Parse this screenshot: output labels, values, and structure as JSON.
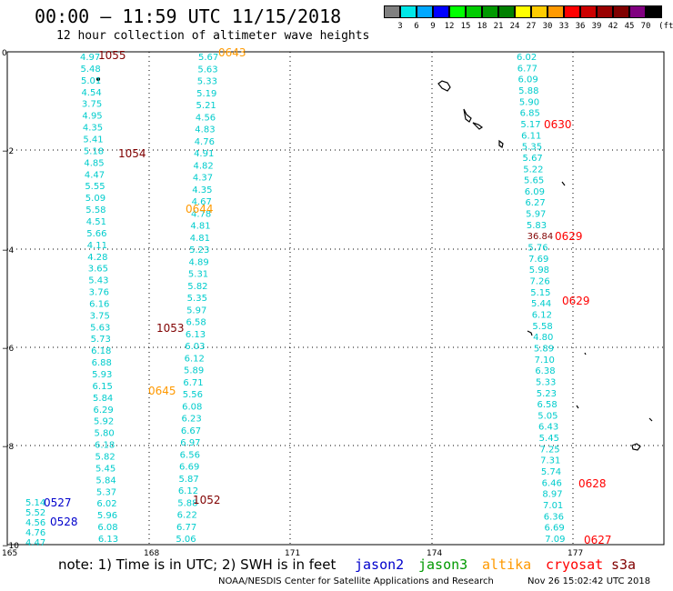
{
  "header": {
    "title": "00:00 — 11:59 UTC 11/15/2018",
    "subtitle": "12 hour collection of altimeter wave heights"
  },
  "colorbar": {
    "unit": "(ft)",
    "bins": [
      {
        "label": "",
        "color": "#808080"
      },
      {
        "label": "3",
        "color": "#00e8e8"
      },
      {
        "label": "6",
        "color": "#00a8ff"
      },
      {
        "label": "9",
        "color": "#0000ff"
      },
      {
        "label": "12",
        "color": "#00ff00"
      },
      {
        "label": "15",
        "color": "#00cc00"
      },
      {
        "label": "18",
        "color": "#009900"
      },
      {
        "label": "21",
        "color": "#008000"
      },
      {
        "label": "24",
        "color": "#ffff00"
      },
      {
        "label": "27",
        "color": "#ffcc00"
      },
      {
        "label": "30",
        "color": "#ff9900"
      },
      {
        "label": "33",
        "color": "#ff0000"
      },
      {
        "label": "36",
        "color": "#cc0000"
      },
      {
        "label": "39",
        "color": "#990000"
      },
      {
        "label": "42",
        "color": "#800000"
      },
      {
        "label": "45",
        "color": "#800080"
      },
      {
        "label": "70",
        "color": "#000000"
      }
    ]
  },
  "axes": {
    "lat_ticks": [
      "0",
      "−2",
      "−4",
      "−6",
      "−8",
      "−10"
    ],
    "lon_ticks": [
      "165",
      "168",
      "171",
      "174",
      "177"
    ]
  },
  "tracks": [
    {
      "x": 88,
      "dx": 0.22,
      "color": "#00cccc",
      "values": [
        "4.97",
        "5.48",
        "5.01",
        "4.54",
        "3.75",
        "4.95",
        "4.35",
        "5.41",
        "5.18",
        "4.85",
        "4.47",
        "5.55",
        "5.09",
        "5.58",
        "4.51",
        "5.66",
        "4.11",
        "4.28",
        "3.65",
        "5.43",
        "3.76",
        "6.16",
        "3.75",
        "5.63",
        "5.73",
        "6.18",
        "6.88",
        "5.93",
        "6.15",
        "5.84",
        "6.29",
        "5.92",
        "5.80",
        "6.18",
        "5.82",
        "5.45",
        "5.84",
        "5.37",
        "6.02",
        "5.96",
        "6.08",
        "6.13"
      ]
    },
    {
      "x": 218,
      "dx": -0.28,
      "color": "#00cccc",
      "values": [
        "5.67",
        "5.63",
        "5.33",
        "5.19",
        "5.21",
        "4.56",
        "4.83",
        "4.76",
        "4.91",
        "4.82",
        "4.37",
        "4.35",
        "4.67",
        "4.78",
        "4.81",
        "4.81",
        "5.23",
        "4.89",
        "5.31",
        "5.82",
        "5.35",
        "5.97",
        "6.58",
        "6.13",
        "6.03",
        "6.12",
        "5.89",
        "6.71",
        "5.56",
        "6.08",
        "6.23",
        "6.67",
        "6.97",
        "6.56",
        "6.69",
        "5.87",
        "6.12",
        "5.88",
        "6.22",
        "6.77",
        "5.06"
      ]
    },
    {
      "x": 568,
      "dx": 0.33,
      "color": "#00cccc",
      "values": [
        "6.02",
        "6.77",
        "6.09",
        "5.88",
        "5.90",
        "6.85",
        "5.17",
        "6.11",
        "5.35",
        "5.67",
        "5.22",
        "5.65",
        "6.09",
        "6.27",
        "5.97",
        "5.83",
        "36.84",
        "5.76",
        "7.69",
        "5.98",
        "7.26",
        "5.15",
        "5.44",
        "6.12",
        "5.58",
        "4.80",
        "5.89",
        "7.10",
        "6.38",
        "5.33",
        "5.23",
        "6.58",
        "5.05",
        "6.43",
        "5.45",
        "7.25",
        "7.31",
        "5.74",
        "6.46",
        "8.97",
        "7.01",
        "6.36",
        "6.69",
        "7.09"
      ]
    },
    {
      "x": 28,
      "dx": 0.0,
      "y0": 552,
      "color": "#00cccc",
      "values": [
        "5.14",
        "5.52",
        "4.56",
        "4.76",
        "4.47"
      ]
    }
  ],
  "pass_labels": [
    {
      "text": "1055",
      "color": "#800000"
    },
    {
      "text": "1054",
      "color": "#800000"
    },
    {
      "text": "1053",
      "color": "#800000"
    },
    {
      "text": "1052",
      "color": "#800000"
    },
    {
      "text": "0643",
      "color": "#ff9900"
    },
    {
      "text": "0644",
      "color": "#ff9900"
    },
    {
      "text": "0645",
      "color": "#ff9900"
    },
    {
      "text": "0630",
      "color": "#ff0000"
    },
    {
      "text": "0629",
      "color": "#ff0000"
    },
    {
      "text": "0629",
      "color": "#ff0000"
    },
    {
      "text": "0628",
      "color": "#ff0000"
    },
    {
      "text": "0627",
      "color": "#ff0000"
    },
    {
      "text": "0527",
      "color": "#0000cc"
    },
    {
      "text": "0528",
      "color": "#0000cc"
    }
  ],
  "notes": {
    "note": "note: 1) Time is in UTC; 2) SWH is in feet",
    "jason2": "jason2",
    "jason3": "jason3",
    "altika": "altika",
    "cryosat": "cryosat",
    "s3a": "s3a",
    "jason2_color": "#0000cc",
    "jason3_color": "#009900",
    "altika_color": "#ff9900",
    "cryosat_color": "#ff0000",
    "s3a_color": "#800000"
  },
  "footer": {
    "left": "NOAA/NESDIS Center for Satellite Applications and Research",
    "right": "Nov 26 15:02:42 UTC 2018"
  }
}
